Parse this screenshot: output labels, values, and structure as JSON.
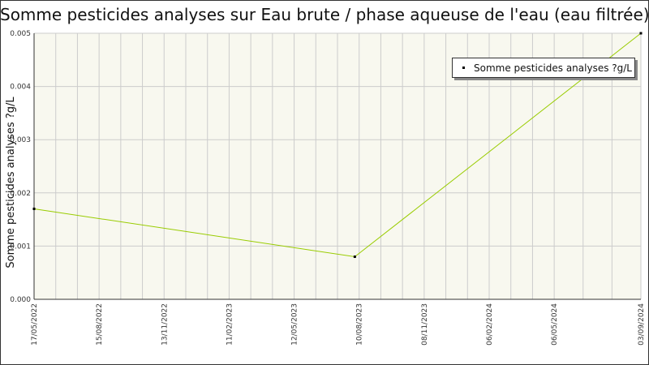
{
  "chart_data": {
    "type": "line",
    "title": "Somme pesticides analyses sur Eau brute / phase aqueuse de l'eau (eau filtrée)",
    "ylabel": "Somme pesticides analyses ?g/L",
    "xlabel": "",
    "x_ticks": [
      "17/05/2022",
      "15/08/2022",
      "13/11/2022",
      "11/02/2023",
      "12/05/2023",
      "10/08/2023",
      "08/11/2023",
      "06/02/2024",
      "06/05/2024",
      "03/09/2024"
    ],
    "xlim": [
      "2022-05-17",
      "2024-09-03"
    ],
    "y_ticks": [
      "0.000",
      "0.001",
      "0.002",
      "0.003",
      "0.004",
      "0.005"
    ],
    "ylim": [
      0,
      0.005
    ],
    "grid": true,
    "legend_position": "top-right",
    "series": [
      {
        "name": "Somme pesticides analyses ?g/L",
        "color": "#99cc00",
        "points": [
          {
            "x": "2022-05-17",
            "y": 0.0017
          },
          {
            "x": "2023-08-04",
            "y": 0.0008
          },
          {
            "x": "2024-09-03",
            "y": 0.005
          }
        ]
      }
    ],
    "colors": {
      "plot_background": "#f8f8ef",
      "grid": "#cccccc",
      "axis": "#333333"
    }
  }
}
